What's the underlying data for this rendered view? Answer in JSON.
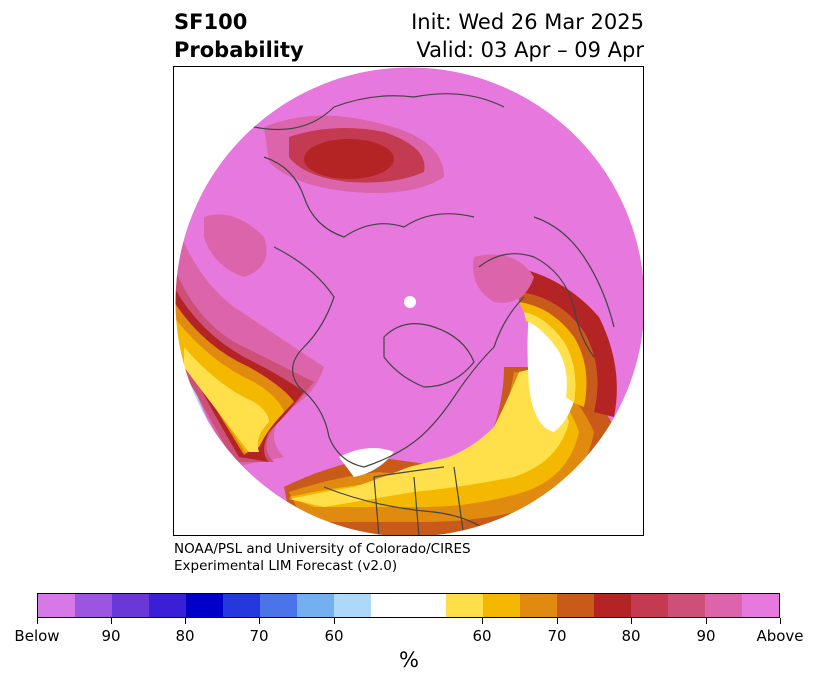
{
  "header": {
    "title_line1": "SF100",
    "title_line2": "Probability",
    "init": "Init: Wed 26 Mar 2025",
    "valid": "Valid: 03 Apr – 09 Apr"
  },
  "credit": {
    "line1": "NOAA/PSL and University of Colorado/CIRES",
    "line2": "Experimental LIM Forecast (v2.0)"
  },
  "colorbar": {
    "colors": [
      "#d678e6",
      "#9b55e0",
      "#6b38d8",
      "#3a1fd6",
      "#0000c8",
      "#2438dc",
      "#4a74e8",
      "#74b0f0",
      "#aed8f8",
      "#ffffff",
      "#ffffff",
      "#ffe04a",
      "#f4b800",
      "#e08a10",
      "#c85a1a",
      "#b42424",
      "#c43a50",
      "#cc5078",
      "#dc64aa",
      "#e678de"
    ],
    "labels": [
      "Below",
      "90",
      "80",
      "70",
      "60",
      "60",
      "70",
      "80",
      "90",
      "Above"
    ],
    "units": "%"
  },
  "map": {
    "projection": "north-polar-stereographic",
    "overlay": "continental coastlines and political boundaries",
    "above_color": "#e678de",
    "below_color": "#aed8f8"
  }
}
